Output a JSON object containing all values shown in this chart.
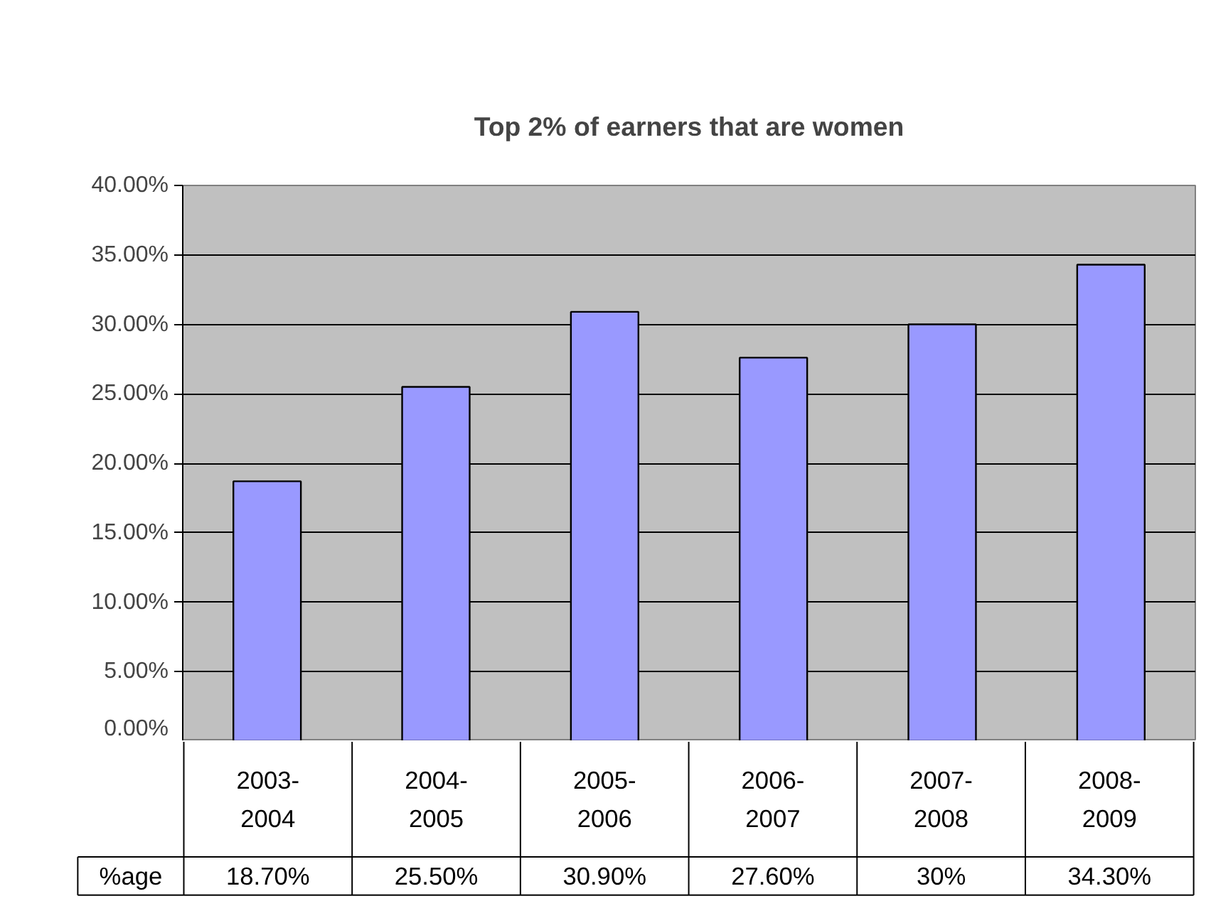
{
  "chart_data": {
    "type": "bar",
    "title": "Top 2% of earners that are women",
    "categories": [
      "2003-2004",
      "2004-2005",
      "2005-2006",
      "2006-2007",
      "2007-2008",
      "2008-2009"
    ],
    "series": [
      {
        "name": "%age",
        "color": "#9999ff",
        "values": [
          18.7,
          25.5,
          30.9,
          27.6,
          30,
          34.3
        ],
        "value_labels": [
          "18.70%",
          "25.50%",
          "30.90%",
          "27.60%",
          "30%",
          "34.30%"
        ]
      }
    ],
    "ylim": [
      0,
      40
    ],
    "yticks": [
      {
        "value": 0,
        "label": "0.00%"
      },
      {
        "value": 5,
        "label": "5.00%"
      },
      {
        "value": 10,
        "label": "10.00%"
      },
      {
        "value": 15,
        "label": "15.00%"
      },
      {
        "value": 20,
        "label": "20.00%"
      },
      {
        "value": 25,
        "label": "25.00%"
      },
      {
        "value": 30,
        "label": "30.00%"
      },
      {
        "value": 35,
        "label": "35.00%"
      },
      {
        "value": 40,
        "label": "40.00%"
      }
    ],
    "grid": "y",
    "legend": "bottom"
  }
}
